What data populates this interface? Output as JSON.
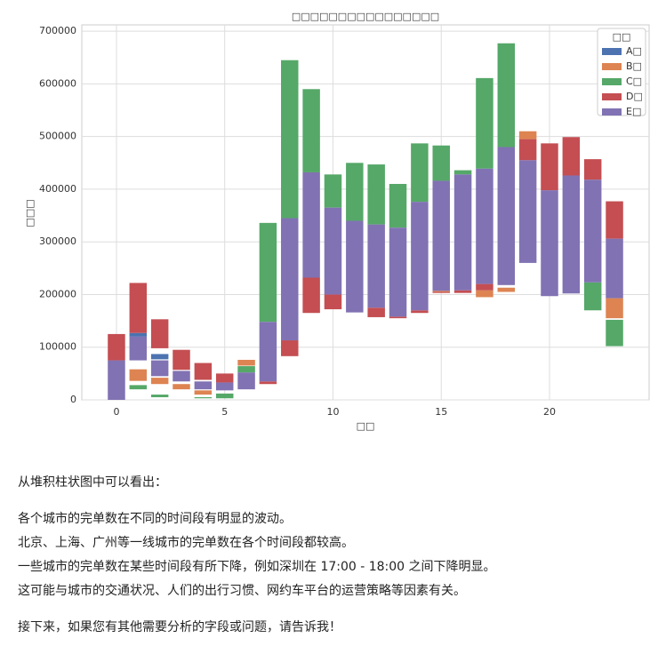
{
  "chart_data": {
    "type": "floating-bar",
    "title": "□□□□□□□□□□□□□□□□",
    "x_label": "□□",
    "y_label": "□□□",
    "legend_title": "□□",
    "legend_position": "upper right",
    "x": [
      0,
      1,
      2,
      3,
      4,
      5,
      6,
      7,
      8,
      9,
      10,
      11,
      12,
      13,
      14,
      15,
      16,
      17,
      18,
      19,
      20,
      21,
      22,
      23
    ],
    "xlim": [
      -1.6,
      24.6
    ],
    "xticks": [
      0,
      5,
      10,
      15,
      20
    ],
    "ylim": [
      0,
      712000
    ],
    "yticks": [
      0,
      100000,
      200000,
      300000,
      400000,
      500000,
      600000,
      700000
    ],
    "grid": true,
    "series": [
      {
        "name": "A□",
        "color": "#4c72b0",
        "values": [
          null,
          [
            120000,
            127000
          ],
          [
            77000,
            87000
          ],
          null,
          null,
          null,
          null,
          null,
          null,
          null,
          null,
          null,
          null,
          null,
          null,
          null,
          null,
          null,
          null,
          null,
          null,
          null,
          null,
          null
        ]
      },
      {
        "name": "B□",
        "color": "#dd8452",
        "values": [
          null,
          [
            36000,
            58000
          ],
          [
            30000,
            42000
          ],
          [
            20000,
            30000
          ],
          [
            10000,
            18000
          ],
          null,
          [
            65000,
            76000
          ],
          null,
          null,
          null,
          null,
          null,
          null,
          null,
          null,
          [
            204000,
            207000
          ],
          null,
          [
            195000,
            208000
          ],
          [
            205000,
            213000
          ],
          [
            495000,
            510000
          ],
          null,
          null,
          null,
          [
            155000,
            193000
          ]
        ]
      },
      {
        "name": "C□",
        "color": "#55a868",
        "values": [
          null,
          [
            20000,
            28000
          ],
          [
            5000,
            10000
          ],
          null,
          [
            3000,
            5000
          ],
          [
            3000,
            12000
          ],
          [
            52000,
            64000
          ],
          [
            148000,
            336000
          ],
          [
            345000,
            645000
          ],
          [
            432000,
            590000
          ],
          [
            365000,
            428000
          ],
          [
            340000,
            450000
          ],
          [
            333000,
            447000
          ],
          [
            327000,
            410000
          ],
          [
            376000,
            487000
          ],
          [
            416000,
            483000
          ],
          [
            428000,
            436000
          ],
          [
            439000,
            611000
          ],
          [
            480000,
            677000
          ],
          null,
          null,
          null,
          [
            170000,
            223000
          ],
          [
            102000,
            152000
          ]
        ]
      },
      {
        "name": "D□",
        "color": "#c44e52",
        "values": [
          [
            75000,
            125000
          ],
          [
            127000,
            222000
          ],
          [
            98000,
            153000
          ],
          [
            57000,
            95000
          ],
          [
            38000,
            70000
          ],
          [
            33000,
            50000
          ],
          null,
          [
            30000,
            35000
          ],
          [
            83000,
            113000
          ],
          [
            165000,
            232000
          ],
          [
            172000,
            200000
          ],
          null,
          [
            157000,
            175000
          ],
          [
            155000,
            158000
          ],
          [
            165000,
            170000
          ],
          [
            203000,
            205000
          ],
          [
            203000,
            208000
          ],
          [
            208000,
            220000
          ],
          null,
          [
            455000,
            495000
          ],
          [
            398000,
            487000
          ],
          [
            426000,
            499000
          ],
          [
            418000,
            457000
          ],
          [
            306000,
            377000
          ]
        ]
      },
      {
        "name": "E□",
        "color": "#8172b3",
        "values": [
          [
            0,
            75000
          ],
          [
            75000,
            120000
          ],
          [
            45000,
            75000
          ],
          [
            35000,
            55000
          ],
          [
            20000,
            35000
          ],
          [
            18000,
            33000
          ],
          [
            20000,
            52000
          ],
          [
            35000,
            148000
          ],
          [
            113000,
            345000
          ],
          [
            232000,
            432000
          ],
          [
            200000,
            365000
          ],
          [
            166000,
            340000
          ],
          [
            175000,
            333000
          ],
          [
            158000,
            327000
          ],
          [
            170000,
            376000
          ],
          [
            207000,
            416000
          ],
          [
            208000,
            428000
          ],
          [
            220000,
            439000
          ],
          [
            218000,
            480000
          ],
          [
            260000,
            455000
          ],
          [
            197000,
            398000
          ],
          [
            202000,
            426000
          ],
          [
            223000,
            418000
          ],
          [
            193000,
            306000
          ]
        ]
      }
    ]
  },
  "notes": {
    "intro": "从堆积柱状图中可以看出：",
    "points": [
      "各个城市的完单数在不同的时间段有明显的波动。",
      "北京、上海、广州等一线城市的完单数在各个时间段都较高。",
      "一些城市的完单数在某些时间段有所下降，例如深圳在 17:00 - 18:00 之间下降明显。",
      "这可能与城市的交通状况、人们的出行习惯、网约车平台的运营策略等因素有关。"
    ],
    "closing": "接下来，如果您有其他需要分析的字段或问题，请告诉我！"
  }
}
